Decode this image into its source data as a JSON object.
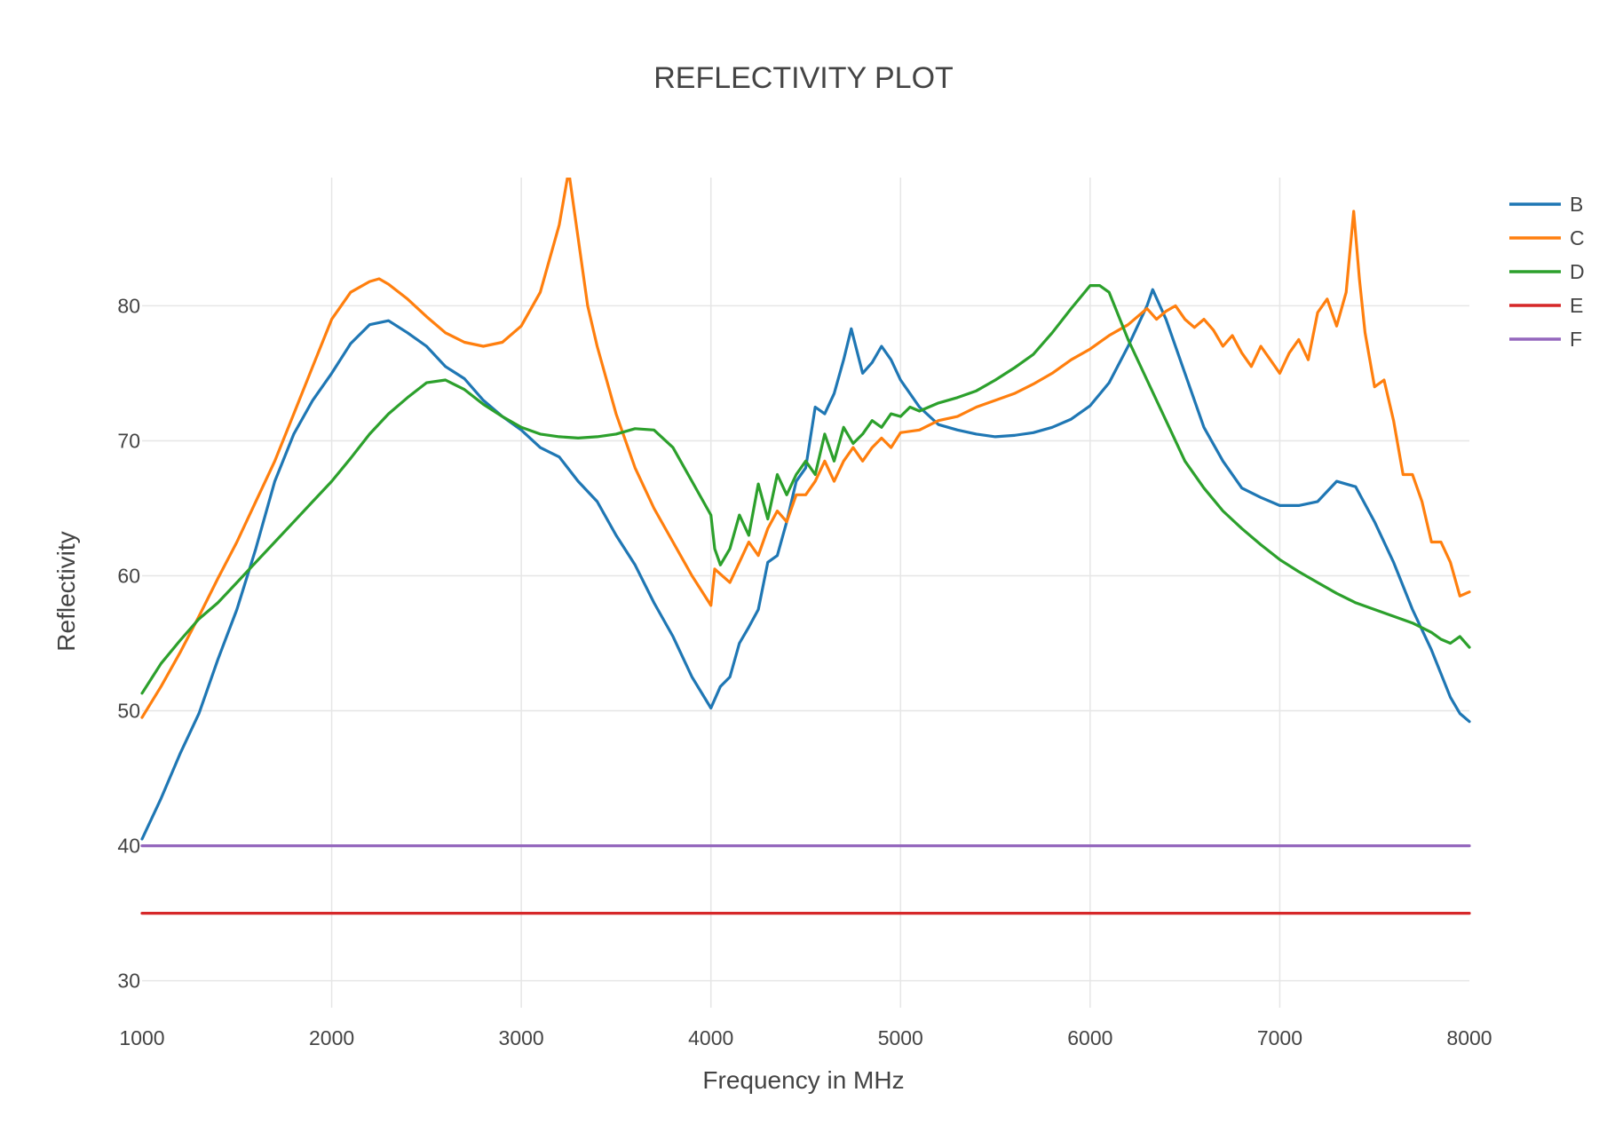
{
  "chart_data": {
    "type": "line",
    "title": "REFLECTIVITY PLOT",
    "xlabel": "Frequency in MHz",
    "ylabel": "Reflectivity",
    "xlim": [
      1000,
      8000
    ],
    "ylim": [
      28,
      89.5
    ],
    "x_ticks": [
      1000,
      2000,
      3000,
      4000,
      5000,
      6000,
      7000,
      8000
    ],
    "y_ticks": [
      30,
      40,
      50,
      60,
      70,
      80
    ],
    "grid": true,
    "legend_position": "top-right",
    "series": [
      {
        "name": "B",
        "color": "#1f77b4",
        "points": [
          [
            1000,
            40.5
          ],
          [
            1100,
            43.5
          ],
          [
            1200,
            46.8
          ],
          [
            1300,
            49.8
          ],
          [
            1400,
            53.8
          ],
          [
            1500,
            57.5
          ],
          [
            1600,
            62
          ],
          [
            1700,
            67
          ],
          [
            1800,
            70.5
          ],
          [
            1900,
            73
          ],
          [
            2000,
            75
          ],
          [
            2100,
            77.2
          ],
          [
            2200,
            78.6
          ],
          [
            2300,
            78.9
          ],
          [
            2400,
            78
          ],
          [
            2500,
            77
          ],
          [
            2600,
            75.5
          ],
          [
            2700,
            74.6
          ],
          [
            2800,
            73
          ],
          [
            2900,
            71.8
          ],
          [
            3000,
            70.8
          ],
          [
            3100,
            69.5
          ],
          [
            3200,
            68.8
          ],
          [
            3300,
            67
          ],
          [
            3400,
            65.5
          ],
          [
            3500,
            63
          ],
          [
            3600,
            60.8
          ],
          [
            3700,
            58
          ],
          [
            3800,
            55.5
          ],
          [
            3900,
            52.5
          ],
          [
            4000,
            50.2
          ],
          [
            4050,
            51.8
          ],
          [
            4100,
            52.5
          ],
          [
            4150,
            55
          ],
          [
            4200,
            56.2
          ],
          [
            4250,
            57.5
          ],
          [
            4300,
            61
          ],
          [
            4350,
            61.5
          ],
          [
            4400,
            64
          ],
          [
            4450,
            67
          ],
          [
            4500,
            68
          ],
          [
            4550,
            72.5
          ],
          [
            4600,
            72
          ],
          [
            4650,
            73.5
          ],
          [
            4700,
            76
          ],
          [
            4740,
            78.3
          ],
          [
            4800,
            75
          ],
          [
            4850,
            75.8
          ],
          [
            4900,
            77
          ],
          [
            4950,
            76
          ],
          [
            5000,
            74.5
          ],
          [
            5100,
            72.5
          ],
          [
            5200,
            71.2
          ],
          [
            5300,
            70.8
          ],
          [
            5400,
            70.5
          ],
          [
            5500,
            70.3
          ],
          [
            5600,
            70.4
          ],
          [
            5700,
            70.6
          ],
          [
            5800,
            71
          ],
          [
            5900,
            71.6
          ],
          [
            6000,
            72.6
          ],
          [
            6100,
            74.3
          ],
          [
            6200,
            77
          ],
          [
            6300,
            80
          ],
          [
            6330,
            81.2
          ],
          [
            6400,
            79
          ],
          [
            6500,
            75
          ],
          [
            6600,
            71
          ],
          [
            6700,
            68.5
          ],
          [
            6800,
            66.5
          ],
          [
            6900,
            65.8
          ],
          [
            7000,
            65.2
          ],
          [
            7100,
            65.2
          ],
          [
            7200,
            65.5
          ],
          [
            7300,
            67
          ],
          [
            7400,
            66.6
          ],
          [
            7500,
            64
          ],
          [
            7600,
            61
          ],
          [
            7700,
            57.5
          ],
          [
            7800,
            54.5
          ],
          [
            7900,
            51
          ],
          [
            7950,
            49.8
          ],
          [
            8000,
            49.2
          ]
        ]
      },
      {
        "name": "C",
        "color": "#ff7f0e",
        "points": [
          [
            1000,
            49.5
          ],
          [
            1100,
            51.8
          ],
          [
            1200,
            54.3
          ],
          [
            1300,
            57
          ],
          [
            1400,
            59.8
          ],
          [
            1500,
            62.5
          ],
          [
            1600,
            65.5
          ],
          [
            1700,
            68.5
          ],
          [
            1800,
            72
          ],
          [
            1900,
            75.5
          ],
          [
            2000,
            79
          ],
          [
            2100,
            81
          ],
          [
            2200,
            81.8
          ],
          [
            2250,
            82
          ],
          [
            2300,
            81.6
          ],
          [
            2400,
            80.5
          ],
          [
            2500,
            79.2
          ],
          [
            2600,
            78
          ],
          [
            2700,
            77.3
          ],
          [
            2800,
            77
          ],
          [
            2900,
            77.3
          ],
          [
            3000,
            78.5
          ],
          [
            3100,
            81
          ],
          [
            3200,
            86
          ],
          [
            3250,
            90
          ],
          [
            3300,
            85
          ],
          [
            3350,
            80
          ],
          [
            3400,
            77
          ],
          [
            3500,
            72
          ],
          [
            3600,
            68
          ],
          [
            3700,
            65
          ],
          [
            3800,
            62.5
          ],
          [
            3900,
            60
          ],
          [
            4000,
            57.8
          ],
          [
            4020,
            60.5
          ],
          [
            4100,
            59.5
          ],
          [
            4150,
            61
          ],
          [
            4200,
            62.5
          ],
          [
            4250,
            61.5
          ],
          [
            4300,
            63.5
          ],
          [
            4350,
            64.8
          ],
          [
            4400,
            64
          ],
          [
            4450,
            66
          ],
          [
            4500,
            66
          ],
          [
            4550,
            67
          ],
          [
            4600,
            68.5
          ],
          [
            4650,
            67
          ],
          [
            4700,
            68.5
          ],
          [
            4750,
            69.5
          ],
          [
            4800,
            68.5
          ],
          [
            4850,
            69.5
          ],
          [
            4900,
            70.2
          ],
          [
            4950,
            69.5
          ],
          [
            5000,
            70.6
          ],
          [
            5100,
            70.8
          ],
          [
            5200,
            71.5
          ],
          [
            5300,
            71.8
          ],
          [
            5400,
            72.5
          ],
          [
            5500,
            73
          ],
          [
            5600,
            73.5
          ],
          [
            5700,
            74.2
          ],
          [
            5800,
            75
          ],
          [
            5900,
            76
          ],
          [
            6000,
            76.8
          ],
          [
            6100,
            77.8
          ],
          [
            6200,
            78.6
          ],
          [
            6300,
            79.8
          ],
          [
            6350,
            79
          ],
          [
            6400,
            79.6
          ],
          [
            6450,
            80
          ],
          [
            6500,
            79
          ],
          [
            6550,
            78.4
          ],
          [
            6600,
            79
          ],
          [
            6650,
            78.2
          ],
          [
            6700,
            77
          ],
          [
            6750,
            77.8
          ],
          [
            6800,
            76.5
          ],
          [
            6850,
            75.5
          ],
          [
            6900,
            77
          ],
          [
            6950,
            76
          ],
          [
            7000,
            75
          ],
          [
            7050,
            76.5
          ],
          [
            7100,
            77.5
          ],
          [
            7150,
            76
          ],
          [
            7200,
            79.5
          ],
          [
            7250,
            80.5
          ],
          [
            7300,
            78.5
          ],
          [
            7350,
            81
          ],
          [
            7390,
            87
          ],
          [
            7420,
            82
          ],
          [
            7450,
            78
          ],
          [
            7500,
            74
          ],
          [
            7550,
            74.5
          ],
          [
            7600,
            71.5
          ],
          [
            7650,
            67.5
          ],
          [
            7700,
            67.5
          ],
          [
            7750,
            65.5
          ],
          [
            7800,
            62.5
          ],
          [
            7850,
            62.5
          ],
          [
            7900,
            61
          ],
          [
            7950,
            58.5
          ],
          [
            8000,
            58.8
          ]
        ]
      },
      {
        "name": "D",
        "color": "#2ca02c",
        "points": [
          [
            1000,
            51.3
          ],
          [
            1100,
            53.5
          ],
          [
            1200,
            55.2
          ],
          [
            1300,
            56.8
          ],
          [
            1400,
            58
          ],
          [
            1500,
            59.5
          ],
          [
            1600,
            61
          ],
          [
            1700,
            62.5
          ],
          [
            1800,
            64
          ],
          [
            1900,
            65.5
          ],
          [
            2000,
            67
          ],
          [
            2100,
            68.7
          ],
          [
            2200,
            70.5
          ],
          [
            2300,
            72
          ],
          [
            2400,
            73.2
          ],
          [
            2500,
            74.3
          ],
          [
            2600,
            74.5
          ],
          [
            2700,
            73.8
          ],
          [
            2800,
            72.7
          ],
          [
            2900,
            71.8
          ],
          [
            3000,
            71
          ],
          [
            3100,
            70.5
          ],
          [
            3200,
            70.3
          ],
          [
            3300,
            70.2
          ],
          [
            3400,
            70.3
          ],
          [
            3500,
            70.5
          ],
          [
            3600,
            70.9
          ],
          [
            3700,
            70.8
          ],
          [
            3800,
            69.5
          ],
          [
            3900,
            67
          ],
          [
            4000,
            64.5
          ],
          [
            4020,
            62
          ],
          [
            4050,
            60.8
          ],
          [
            4100,
            62
          ],
          [
            4150,
            64.5
          ],
          [
            4200,
            63
          ],
          [
            4250,
            66.8
          ],
          [
            4300,
            64.2
          ],
          [
            4350,
            67.5
          ],
          [
            4400,
            66
          ],
          [
            4450,
            67.5
          ],
          [
            4500,
            68.5
          ],
          [
            4550,
            67.5
          ],
          [
            4600,
            70.5
          ],
          [
            4650,
            68.5
          ],
          [
            4700,
            71
          ],
          [
            4750,
            69.8
          ],
          [
            4800,
            70.5
          ],
          [
            4850,
            71.5
          ],
          [
            4900,
            71
          ],
          [
            4950,
            72
          ],
          [
            5000,
            71.8
          ],
          [
            5050,
            72.5
          ],
          [
            5100,
            72.2
          ],
          [
            5200,
            72.8
          ],
          [
            5300,
            73.2
          ],
          [
            5400,
            73.7
          ],
          [
            5500,
            74.5
          ],
          [
            5600,
            75.4
          ],
          [
            5700,
            76.4
          ],
          [
            5800,
            78
          ],
          [
            5900,
            79.8
          ],
          [
            6000,
            81.5
          ],
          [
            6050,
            81.5
          ],
          [
            6100,
            81
          ],
          [
            6200,
            77.5
          ],
          [
            6300,
            74.5
          ],
          [
            6400,
            71.5
          ],
          [
            6500,
            68.5
          ],
          [
            6600,
            66.5
          ],
          [
            6700,
            64.8
          ],
          [
            6800,
            63.5
          ],
          [
            6900,
            62.3
          ],
          [
            7000,
            61.2
          ],
          [
            7100,
            60.3
          ],
          [
            7200,
            59.5
          ],
          [
            7300,
            58.7
          ],
          [
            7400,
            58
          ],
          [
            7500,
            57.5
          ],
          [
            7600,
            57
          ],
          [
            7700,
            56.5
          ],
          [
            7800,
            55.8
          ],
          [
            7850,
            55.3
          ],
          [
            7900,
            55
          ],
          [
            7950,
            55.5
          ],
          [
            8000,
            54.7
          ]
        ]
      },
      {
        "name": "E",
        "color": "#d62728",
        "points": [
          [
            1000,
            35
          ],
          [
            8000,
            35
          ]
        ]
      },
      {
        "name": "F",
        "color": "#9467bd",
        "points": [
          [
            1000,
            40
          ],
          [
            8000,
            40
          ]
        ]
      }
    ]
  }
}
